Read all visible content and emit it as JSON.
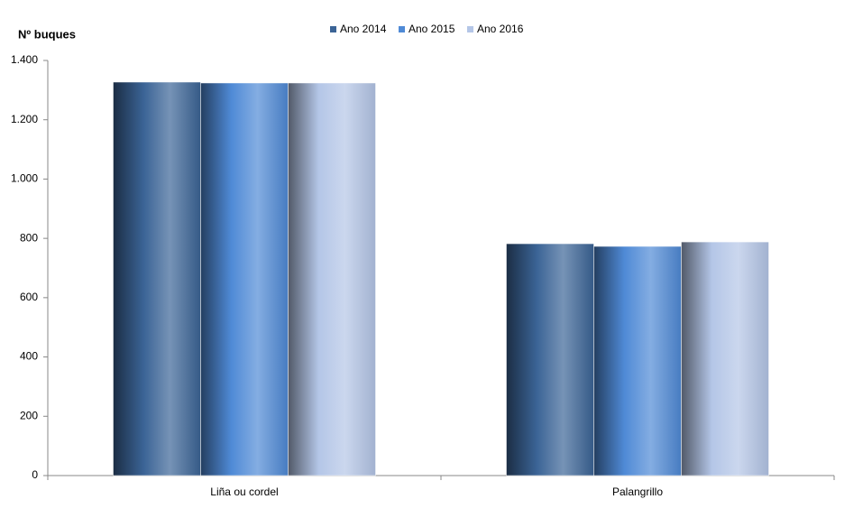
{
  "chart_data": {
    "type": "bar",
    "y_label": "Nº  buques",
    "categories": [
      "Liña ou cordel",
      "Palangrillo"
    ],
    "series": [
      {
        "name": "Ano 2014",
        "color": "#3b6496",
        "values": [
          1327,
          782
        ]
      },
      {
        "name": "Ano 2015",
        "color": "#4f8ad6",
        "values": [
          1324,
          773
        ]
      },
      {
        "name": "Ano 2016",
        "color": "#b4c6e7",
        "values": [
          1324,
          788
        ]
      }
    ],
    "ylim": [
      0,
      1400
    ],
    "yticks": [
      0,
      200,
      400,
      600,
      800,
      {
        "value": 1000,
        "label": "1.000"
      },
      {
        "value": 1200,
        "label": "1.200"
      },
      {
        "value": 1400,
        "label": "1.400"
      }
    ],
    "grid": false,
    "legend": "top"
  }
}
